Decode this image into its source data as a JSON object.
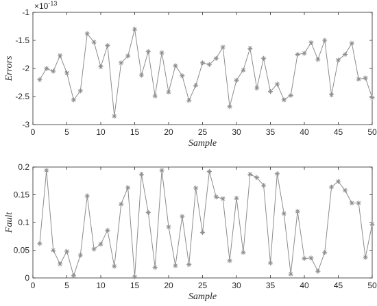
{
  "chart_data": [
    {
      "type": "line",
      "xlabel": "Sample",
      "ylabel": "Errors",
      "exponent_label": "×10",
      "exponent_power": "-13",
      "xlim": [
        0,
        50
      ],
      "ylim": [
        -3,
        -1
      ],
      "xticks": [
        0,
        5,
        10,
        15,
        20,
        25,
        30,
        35,
        40,
        45,
        50
      ],
      "yticks": [
        -3,
        -2.5,
        -2,
        -1.5,
        -1
      ],
      "ytick_labels": [
        "-3",
        "-2.5",
        "-2",
        "-1.5",
        "-1"
      ],
      "marker": "asterisk",
      "color": "#8c8c8c",
      "x": [
        1,
        2,
        3,
        4,
        5,
        6,
        7,
        8,
        9,
        10,
        11,
        12,
        13,
        14,
        15,
        16,
        17,
        18,
        19,
        20,
        21,
        22,
        23,
        24,
        25,
        26,
        27,
        28,
        29,
        30,
        31,
        32,
        33,
        34,
        35,
        36,
        37,
        38,
        39,
        40,
        41,
        42,
        43,
        44,
        45,
        46,
        47,
        48,
        49,
        50
      ],
      "values": [
        -2.2,
        -2.0,
        -2.05,
        -1.77,
        -2.08,
        -2.56,
        -2.4,
        -1.38,
        -1.53,
        -1.97,
        -1.59,
        -2.85,
        -1.9,
        -1.78,
        -1.3,
        -2.12,
        -1.7,
        -2.49,
        -1.72,
        -2.42,
        -1.95,
        -2.13,
        -2.57,
        -2.3,
        -1.9,
        -1.93,
        -1.82,
        -1.62,
        -2.68,
        -2.21,
        -2.03,
        -1.64,
        -2.35,
        -1.82,
        -2.41,
        -2.28,
        -2.56,
        -2.48,
        -1.75,
        -1.73,
        -1.54,
        -1.84,
        -1.5,
        -2.47,
        -1.85,
        -1.75,
        -1.55,
        -2.19,
        -2.17,
        -2.52
      ]
    },
    {
      "type": "line",
      "xlabel": "Sample",
      "ylabel": "Fault",
      "xlim": [
        0,
        50
      ],
      "ylim": [
        0,
        0.2
      ],
      "xticks": [
        0,
        5,
        10,
        15,
        20,
        25,
        30,
        35,
        40,
        45,
        50
      ],
      "yticks": [
        0,
        0.05,
        0.1,
        0.15,
        0.2
      ],
      "ytick_labels": [
        "0",
        "0.05",
        "0.1",
        "0.15",
        "0.2"
      ],
      "marker": "asterisk",
      "color": "#8c8c8c",
      "x": [
        1,
        2,
        3,
        4,
        5,
        6,
        7,
        8,
        9,
        10,
        11,
        12,
        13,
        14,
        15,
        16,
        17,
        18,
        19,
        20,
        21,
        22,
        23,
        24,
        25,
        26,
        27,
        28,
        29,
        30,
        31,
        32,
        33,
        34,
        35,
        36,
        37,
        38,
        39,
        40,
        41,
        42,
        43,
        44,
        45,
        46,
        47,
        48,
        49,
        50
      ],
      "values": [
        0.062,
        0.194,
        0.05,
        0.025,
        0.048,
        0.004,
        0.041,
        0.148,
        0.052,
        0.061,
        0.086,
        0.021,
        0.133,
        0.163,
        0.002,
        0.187,
        0.118,
        0.019,
        0.194,
        0.092,
        0.022,
        0.111,
        0.024,
        0.162,
        0.082,
        0.192,
        0.146,
        0.143,
        0.031,
        0.144,
        0.046,
        0.187,
        0.181,
        0.167,
        0.027,
        0.188,
        0.116,
        0.007,
        0.12,
        0.035,
        0.036,
        0.012,
        0.046,
        0.164,
        0.174,
        0.158,
        0.135,
        0.135,
        0.037,
        0.097
      ]
    }
  ]
}
